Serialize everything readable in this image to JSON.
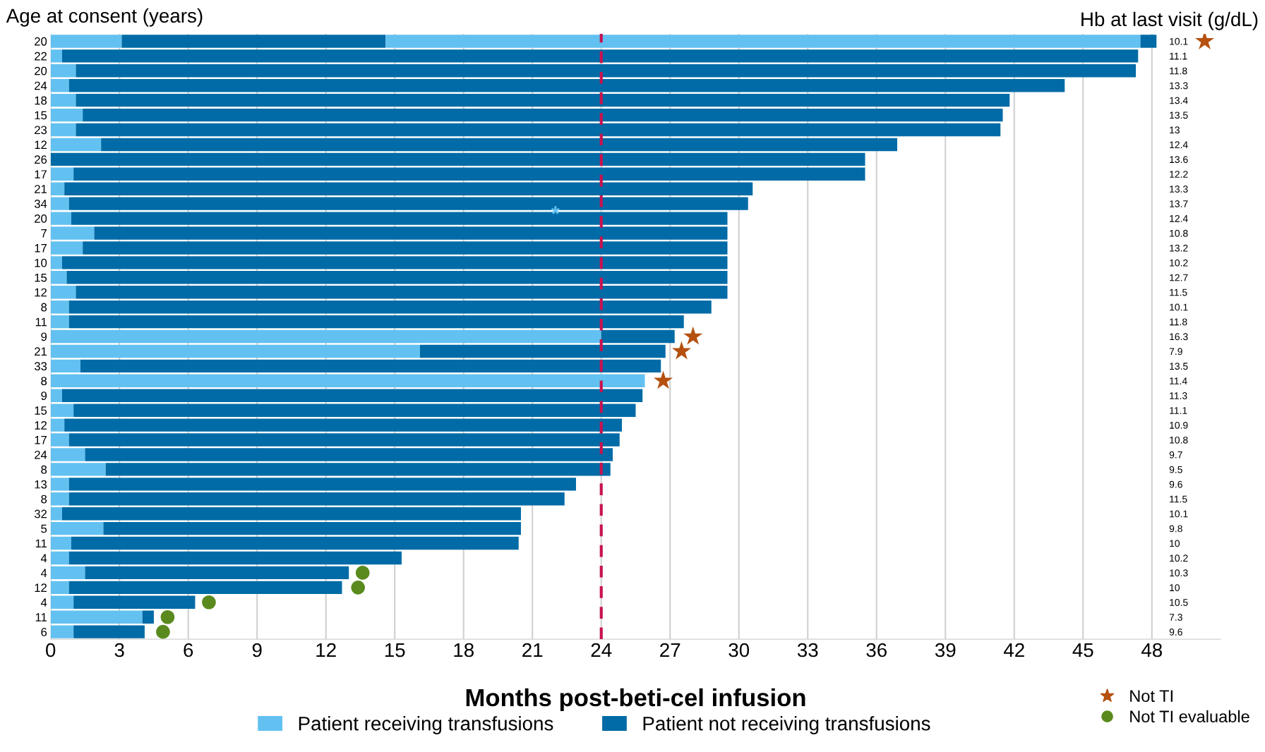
{
  "chart_data": {
    "type": "bar",
    "orientation": "horizontal",
    "stacked": true,
    "xlabel": "Months post-beti-cel infusion",
    "ylabel": "Age at consent (years)",
    "y2label": "Hb at last visit (g/dL)",
    "categories": [
      "20",
      "22",
      "20",
      "24",
      "18",
      "15",
      "23",
      "12",
      "26",
      "17",
      "21",
      "34",
      "20",
      "7",
      "17",
      "10",
      "15",
      "12",
      "8",
      "11",
      "9",
      "21",
      "33",
      "8",
      "9",
      "15",
      "12",
      "17",
      "24",
      "8",
      "13",
      "8",
      "32",
      "5",
      "11",
      "4",
      "4",
      "12",
      "4",
      "11",
      "6"
    ],
    "y2_categories": [
      "10.1",
      "11.1",
      "11.8",
      "13.3",
      "13.4",
      "13.5",
      "13",
      "12.4",
      "13.6",
      "12.2",
      "13.3",
      "13.7",
      "12.4",
      "10.8",
      "13.2",
      "10.2",
      "12.7",
      "11.5",
      "10.1",
      "11.8",
      "16.3",
      "7.9",
      "13.5",
      "11.4",
      "11.3",
      "11.1",
      "10.9",
      "10.8",
      "9.7",
      "9.5",
      "9.6",
      "11.5",
      "10.1",
      "9.8",
      "10",
      "10.2",
      "10.3",
      "10",
      "10.5",
      "7.3",
      "9.6"
    ],
    "series": [
      {
        "name": "Patient receiving transfusions",
        "color": "#62c1f0",
        "values": [
          3.1,
          0.5,
          1.1,
          0.8,
          1.1,
          1.4,
          1.1,
          2.2,
          0,
          1.0,
          0.6,
          0.8,
          0.9,
          1.9,
          1.4,
          0.5,
          0.7,
          1.1,
          0.8,
          0.8,
          24.0,
          16.1,
          1.3,
          25.9,
          0.5,
          1.0,
          0.6,
          0.8,
          1.5,
          2.4,
          0.8,
          0.8,
          0.5,
          2.3,
          0.9,
          0.8,
          1.5,
          0.8,
          1.0,
          4.0,
          1.0
        ]
      },
      {
        "name": "Patient not receiving transfusions",
        "color": "#006ba6",
        "values": [
          11.5,
          46.9,
          46.2,
          43.4,
          40.7,
          40.1,
          40.3,
          34.7,
          35.5,
          34.5,
          30.0,
          29.6,
          28.6,
          27.6,
          28.1,
          29.0,
          28.8,
          28.4,
          28.0,
          26.8,
          3.2,
          10.7,
          25.3,
          0,
          25.3,
          24.5,
          24.3,
          24.0,
          23.0,
          22.0,
          22.1,
          21.6,
          20.0,
          18.2,
          19.5,
          14.5,
          11.5,
          11.9,
          5.3,
          0.5,
          3.1
        ]
      },
      {
        "color": "#62c1f0",
        "values": [
          32.9,
          0,
          0,
          0,
          0,
          0,
          0,
          0,
          0,
          0,
          0,
          0,
          0,
          0,
          0,
          0,
          0,
          0,
          0,
          0,
          0,
          0,
          0,
          0,
          0,
          0,
          0,
          0,
          0,
          0,
          0,
          0,
          0,
          0,
          0,
          0,
          0,
          0,
          0,
          0,
          0
        ]
      },
      {
        "color": "#006ba6",
        "values": [
          0.7,
          0,
          0,
          0,
          0,
          0,
          0,
          0,
          0,
          0,
          0,
          0,
          0,
          0,
          0,
          0,
          0,
          0,
          0,
          0,
          0,
          0,
          0,
          0,
          0,
          0,
          0,
          0,
          0,
          0,
          0,
          0,
          0,
          0,
          0,
          0,
          0,
          0,
          0,
          0,
          0
        ]
      },
      {
        "name": "Not TI",
        "type": "scatter",
        "marker": "star",
        "color": "#b5500f",
        "values": [
          50.3,
          null,
          null,
          null,
          null,
          null,
          null,
          null,
          null,
          null,
          null,
          null,
          null,
          null,
          null,
          null,
          null,
          null,
          null,
          null,
          28.0,
          27.5,
          null,
          26.7,
          null,
          null,
          null,
          null,
          null,
          null,
          null,
          null,
          null,
          null,
          null,
          null,
          null,
          null,
          null,
          null,
          null
        ]
      },
      {
        "name": "Not TI evaluable",
        "type": "scatter",
        "marker": "circle",
        "color": "#5a8a1e",
        "values": [
          null,
          null,
          null,
          null,
          null,
          null,
          null,
          null,
          null,
          null,
          null,
          null,
          null,
          null,
          null,
          null,
          null,
          null,
          null,
          null,
          null,
          null,
          null,
          null,
          null,
          null,
          null,
          null,
          null,
          null,
          null,
          null,
          null,
          null,
          null,
          null,
          13.6,
          13.4,
          6.9,
          5.1,
          4.9
        ]
      }
    ],
    "annotations": [
      "*"
    ],
    "ref_lines": [
      {
        "axis": "x",
        "value": 24,
        "color": "#c8124f",
        "line_style": "dashed"
      }
    ],
    "xlim": [
      0,
      51
    ],
    "xticks": [
      0,
      3,
      6,
      9,
      12,
      15,
      18,
      21,
      24,
      27,
      30,
      33,
      36,
      39,
      42,
      45,
      48
    ],
    "grid": "x",
    "legend": "bottom"
  }
}
